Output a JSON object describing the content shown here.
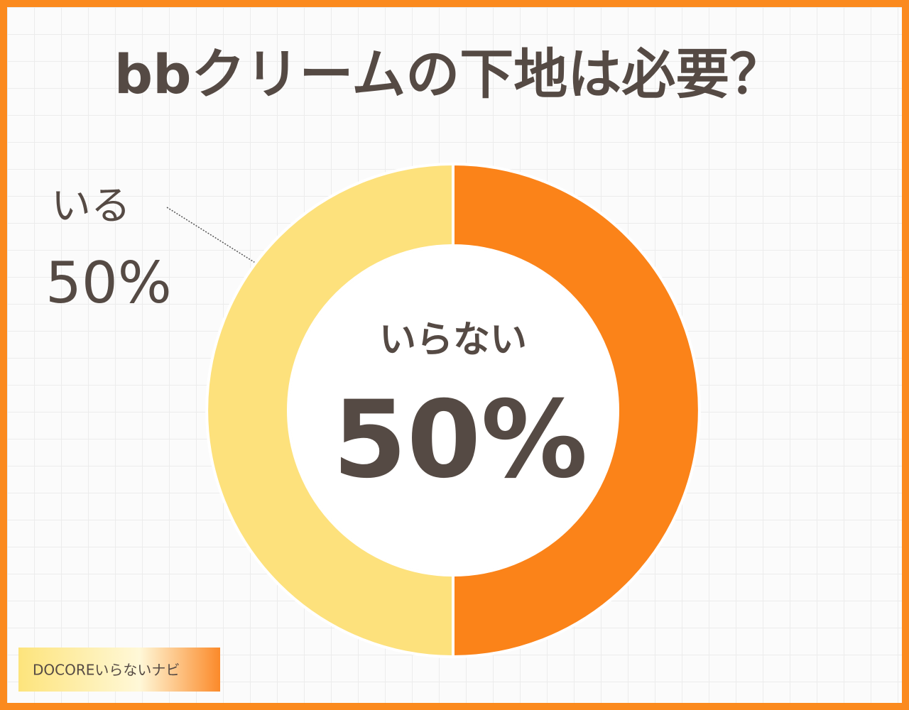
{
  "chart_data": {
    "type": "pie",
    "donut": true,
    "title": "bbクリームの下地は必要？",
    "categories": [
      "いらない",
      "いる"
    ],
    "values": [
      50,
      50
    ],
    "value_labels": [
      "50%",
      "50%"
    ],
    "colors": [
      "#fb8319",
      "#fde17c"
    ],
    "footer": "DOCOREいらないナビ"
  }
}
